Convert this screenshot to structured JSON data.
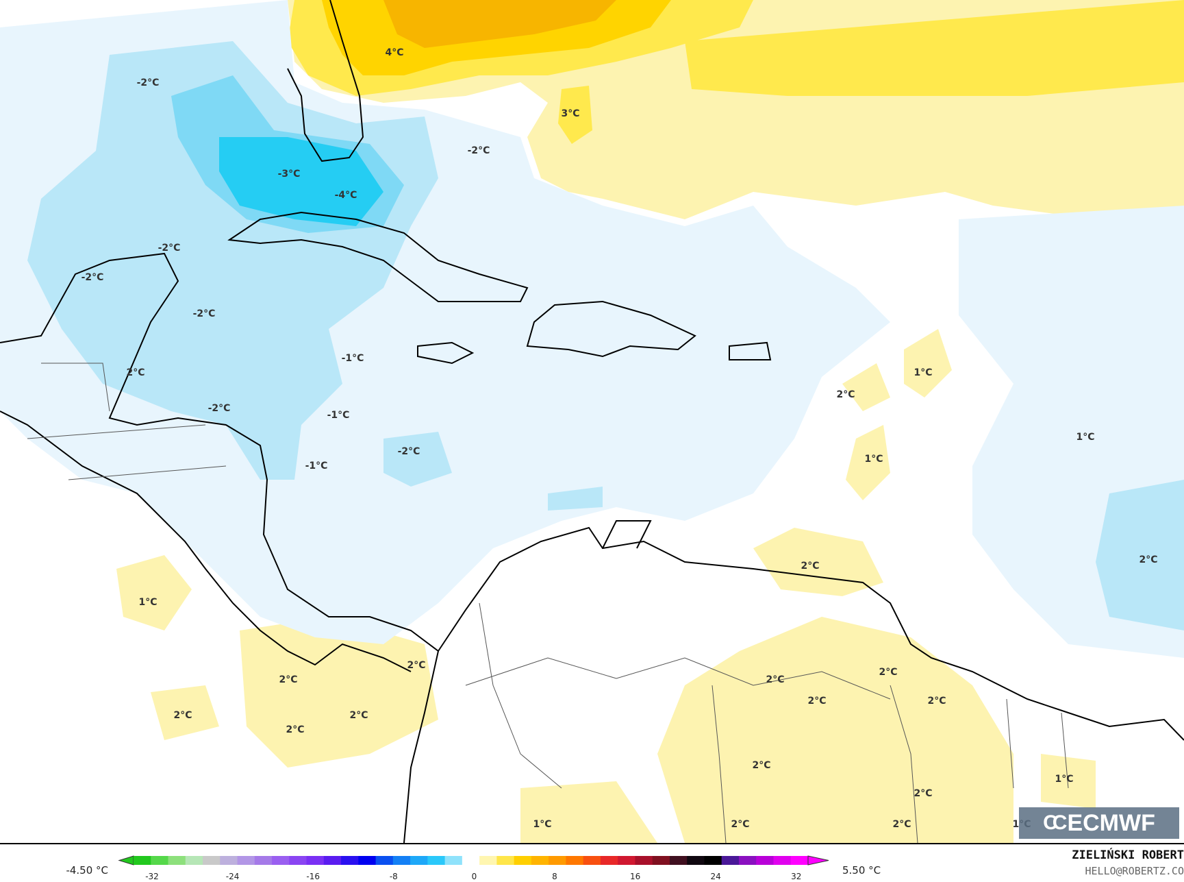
{
  "map": {
    "variable": "temperature anomaly",
    "labels": [
      "4°C",
      "3°C",
      "-2°C",
      "-3°C",
      "-4°C",
      "-2°C",
      "-2°C",
      "-2°C",
      "-2°C",
      "2°C",
      "-2°C",
      "-1°C",
      "-1°C",
      "-1°C",
      "-2°C",
      "1°C",
      "2°C",
      "1°C",
      "1°C",
      "2°C",
      "2°C",
      "1°C",
      "2°C",
      "2°C",
      "2°C",
      "2°C",
      "2°C",
      "2°C",
      "2°C",
      "2°C",
      "2°C",
      "2°C",
      "2°C",
      "2°C",
      "2°C",
      "1°C",
      "1°C",
      "1°C"
    ],
    "colors": {
      "warm_strong": "#f7b500",
      "warm": "#ffd400",
      "warm_mid": "#ffe94d",
      "warm_light": "#fdf3b0",
      "cool_pale": "#e8f5fd",
      "cool_light": "#b9e7f8",
      "cool_mid": "#7fd9f5",
      "cool_strong": "#25cdf3",
      "land_line": "#000000"
    }
  },
  "logo": {
    "text": "ECMWF"
  },
  "colorbar": {
    "min_label": "-4.50 °C",
    "max_label": "5.50 °C",
    "ticks": [
      "-32",
      "-24",
      "-16",
      "-8",
      "0",
      "8",
      "16",
      "24",
      "32"
    ],
    "palette": [
      "#22c81e",
      "#55d84a",
      "#8de07c",
      "#b6e6b6",
      "#c9c9c9",
      "#bdb0dd",
      "#b296e6",
      "#a57ae8",
      "#9a5ff0",
      "#8a45f2",
      "#7a30f4",
      "#5a1cf0",
      "#2a10f0",
      "#0000f0",
      "#0a50f0",
      "#1480f5",
      "#1ea8f8",
      "#2ac8fa",
      "#8fe2fb",
      "#ffffff",
      "#fff6b0",
      "#ffe64a",
      "#ffcf00",
      "#ffb400",
      "#ff9a00",
      "#ff7800",
      "#f85010",
      "#e82828",
      "#d01830",
      "#a8102a",
      "#801020",
      "#401020",
      "#100810",
      "#000000",
      "#4a1898",
      "#8a10c0",
      "#b800d8",
      "#e000ee",
      "#ff00ff"
    ]
  },
  "author": {
    "name": "ZIELIŃSKI ROBERT",
    "email": "HELLO@ROBERTZ.CO"
  }
}
